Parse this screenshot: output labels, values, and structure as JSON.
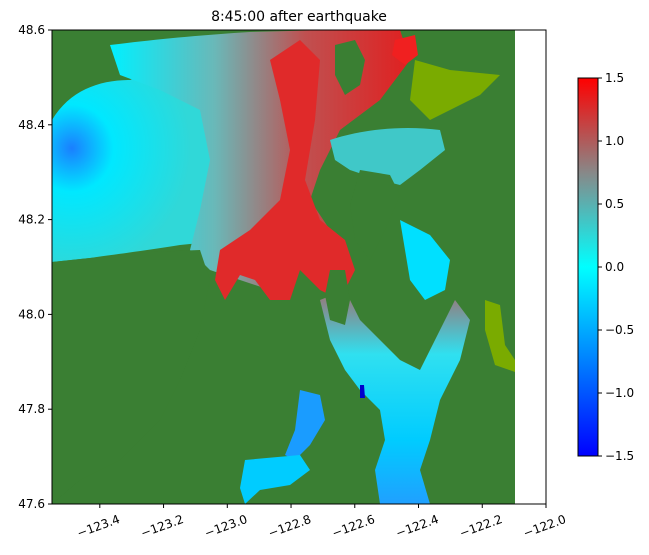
{
  "chart_data": {
    "type": "heatmap",
    "title": "8:45:00 after earthquake",
    "xlabel": "",
    "ylabel": "",
    "xlim": [
      -123.55,
      -122.0
    ],
    "ylim": [
      47.6,
      48.6
    ],
    "x_ticks": [
      -123.4,
      -123.2,
      -123.0,
      -122.8,
      -122.6,
      -122.4,
      -122.2,
      -122.0
    ],
    "x_tick_labels": [
      "−123.4",
      "−123.2",
      "−123.0",
      "−122.8",
      "−122.6",
      "−122.4",
      "−122.2",
      "−122.0"
    ],
    "y_ticks": [
      47.6,
      47.8,
      48.0,
      48.2,
      48.4,
      48.6
    ],
    "y_tick_labels": [
      "47.6",
      "47.8",
      "48.0",
      "48.2",
      "48.4",
      "48.6"
    ],
    "colorbar": {
      "vmin": -1.5,
      "vmax": 1.5,
      "ticks": [
        1.5,
        1.0,
        0.5,
        0.0,
        -0.5,
        -1.0,
        -1.5
      ],
      "tick_labels": [
        "1.5",
        "1.0",
        "0.5",
        "0.0",
        "−0.5",
        "−1.0",
        "−1.5"
      ],
      "colors": [
        "#0000ff",
        "#00ffff",
        "#888888",
        "#ff0000"
      ],
      "stops": [
        -1.5,
        0.0,
        0.75,
        1.5
      ]
    },
    "land_color": "#3a7f33",
    "shallow_color": "#7aab00",
    "grid": false
  }
}
